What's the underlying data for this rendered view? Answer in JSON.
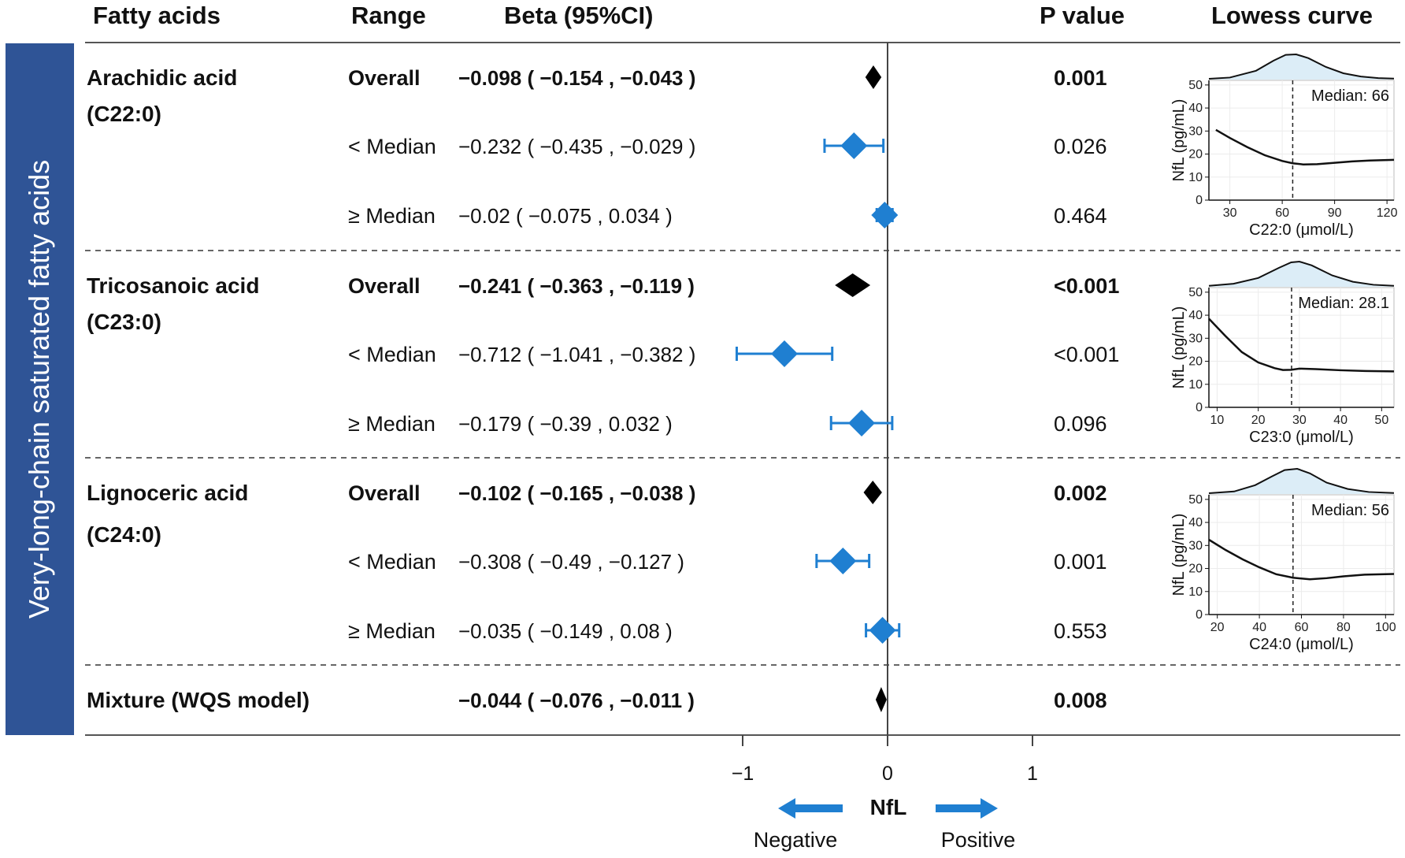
{
  "headers": {
    "fatty_acids": "Fatty acids",
    "range": "Range",
    "beta": "Beta (95%CI)",
    "p_value": "P value",
    "lowess": "Lowess curve"
  },
  "side_label": "Very-long-chain saturated fatty acids",
  "colors": {
    "sidebar": "#2f5496",
    "ci_blue": "#1f7fd1",
    "overall": "#000000",
    "density_fill": "#dcedf7",
    "arrow": "#1f7fd1"
  },
  "chart_data": {
    "type": "forest",
    "xlim": [
      -1.5,
      1.5
    ],
    "x_ticks": [
      -1,
      0,
      1
    ],
    "x_tick_labels": [
      "−1",
      "0",
      "1"
    ],
    "axis_label": "NfL",
    "direction_labels": {
      "negative": "Negative",
      "positive": "Positive"
    },
    "groups": [
      {
        "name": "Arachidic acid",
        "code": "(C22:0)",
        "rows": [
          {
            "range": "Overall",
            "beta": -0.098,
            "lower": -0.154,
            "upper": -0.043,
            "ci_text": "−0.098 ( −0.154 , −0.043 )",
            "p": "0.001",
            "bold": true
          },
          {
            "range": "< Median",
            "beta": -0.232,
            "lower": -0.435,
            "upper": -0.029,
            "ci_text": "−0.232 ( −0.435 , −0.029 )",
            "p": "0.026",
            "bold": false
          },
          {
            "range": "≥ Median",
            "beta": -0.02,
            "lower": -0.075,
            "upper": 0.034,
            "ci_text": "−0.02 ( −0.075 , 0.034 )",
            "p": "0.464",
            "bold": false
          }
        ],
        "lowess": {
          "x_label": "C22:0 (μmol/L)",
          "y_label": "NfL (pg/mL)",
          "xlim": [
            18,
            124
          ],
          "x_ticks": [
            30,
            60,
            90,
            120
          ],
          "ylim": [
            0,
            52
          ],
          "y_ticks": [
            0,
            10,
            20,
            30,
            40,
            50
          ],
          "median": 66,
          "median_label": "Median: 66",
          "curve": [
            [
              22,
              30.5
            ],
            [
              30,
              27
            ],
            [
              40,
              23
            ],
            [
              50,
              19.5
            ],
            [
              60,
              17
            ],
            [
              66,
              16
            ],
            [
              72,
              15.5
            ],
            [
              80,
              15.6
            ],
            [
              90,
              16.2
            ],
            [
              100,
              16.8
            ],
            [
              110,
              17.2
            ],
            [
              120,
              17.4
            ],
            [
              124,
              17.5
            ]
          ],
          "density": [
            [
              18,
              0.03
            ],
            [
              30,
              0.08
            ],
            [
              45,
              0.35
            ],
            [
              55,
              0.75
            ],
            [
              62,
              0.98
            ],
            [
              68,
              1.0
            ],
            [
              75,
              0.85
            ],
            [
              85,
              0.5
            ],
            [
              95,
              0.25
            ],
            [
              105,
              0.12
            ],
            [
              115,
              0.06
            ],
            [
              124,
              0.04
            ]
          ]
        }
      },
      {
        "name": "Tricosanoic acid",
        "code": "(C23:0)",
        "rows": [
          {
            "range": "Overall",
            "beta": -0.241,
            "lower": -0.363,
            "upper": -0.119,
            "ci_text": "−0.241 ( −0.363 , −0.119 )",
            "p": "<0.001",
            "bold": true
          },
          {
            "range": "< Median",
            "beta": -0.712,
            "lower": -1.041,
            "upper": -0.382,
            "ci_text": "−0.712 ( −1.041 , −0.382 )",
            "p": "<0.001",
            "bold": false
          },
          {
            "range": "≥ Median",
            "beta": -0.179,
            "lower": -0.39,
            "upper": 0.032,
            "ci_text": "−0.179 ( −0.39 , 0.032 )",
            "p": "0.096",
            "bold": false
          }
        ],
        "lowess": {
          "x_label": "C23:0 (μmol/L)",
          "y_label": "NfL (pg/mL)",
          "xlim": [
            8,
            53
          ],
          "x_ticks": [
            10,
            20,
            30,
            40,
            50
          ],
          "ylim": [
            0,
            52
          ],
          "y_ticks": [
            0,
            10,
            20,
            30,
            40,
            50
          ],
          "median": 28.1,
          "median_label": "Median: 28.1",
          "curve": [
            [
              8,
              38.5
            ],
            [
              12,
              31
            ],
            [
              16,
              24
            ],
            [
              20,
              19.5
            ],
            [
              24,
              17
            ],
            [
              26,
              16.2
            ],
            [
              28,
              16.3
            ],
            [
              30,
              16.8
            ],
            [
              34,
              16.6
            ],
            [
              40,
              16.1
            ],
            [
              46,
              15.8
            ],
            [
              53,
              15.6
            ]
          ],
          "density": [
            [
              8,
              0.04
            ],
            [
              14,
              0.12
            ],
            [
              20,
              0.35
            ],
            [
              25,
              0.75
            ],
            [
              28,
              0.97
            ],
            [
              30,
              1.0
            ],
            [
              33,
              0.85
            ],
            [
              38,
              0.45
            ],
            [
              43,
              0.2
            ],
            [
              48,
              0.08
            ],
            [
              53,
              0.04
            ]
          ]
        }
      },
      {
        "name": "Lignoceric acid",
        "code": "(C24:0)",
        "rows": [
          {
            "range": "Overall",
            "beta": -0.102,
            "lower": -0.165,
            "upper": -0.038,
            "ci_text": "−0.102 ( −0.165 , −0.038 )",
            "p": "0.002",
            "bold": true
          },
          {
            "range": "< Median",
            "beta": -0.308,
            "lower": -0.49,
            "upper": -0.127,
            "ci_text": "−0.308 ( −0.49 , −0.127 )",
            "p": "0.001",
            "bold": false
          },
          {
            "range": "≥ Median",
            "beta": -0.035,
            "lower": -0.149,
            "upper": 0.08,
            "ci_text": "−0.035 ( −0.149 , 0.08 )",
            "p": "0.553",
            "bold": false
          }
        ],
        "lowess": {
          "x_label": "C24:0 (μmol/L)",
          "y_label": "NfL (pg/mL)",
          "xlim": [
            16,
            104
          ],
          "x_ticks": [
            20,
            40,
            60,
            80,
            100
          ],
          "ylim": [
            0,
            52
          ],
          "y_ticks": [
            0,
            10,
            20,
            30,
            40,
            50
          ],
          "median": 56,
          "median_label": "Median: 56",
          "curve": [
            [
              16,
              32.5
            ],
            [
              24,
              28
            ],
            [
              32,
              24
            ],
            [
              40,
              20.5
            ],
            [
              48,
              17.5
            ],
            [
              56,
              16
            ],
            [
              64,
              15.3
            ],
            [
              72,
              15.8
            ],
            [
              80,
              16.6
            ],
            [
              90,
              17.3
            ],
            [
              104,
              17.6
            ]
          ],
          "density": [
            [
              16,
              0.03
            ],
            [
              28,
              0.1
            ],
            [
              38,
              0.35
            ],
            [
              46,
              0.7
            ],
            [
              52,
              0.95
            ],
            [
              58,
              1.0
            ],
            [
              64,
              0.82
            ],
            [
              72,
              0.45
            ],
            [
              82,
              0.2
            ],
            [
              92,
              0.08
            ],
            [
              104,
              0.04
            ]
          ]
        }
      }
    ],
    "mixture": {
      "name": "Mixture (WQS model)",
      "beta": -0.044,
      "lower": -0.076,
      "upper": -0.011,
      "ci_text": "−0.044 ( −0.076 , −0.011 )",
      "p": "0.008"
    }
  }
}
